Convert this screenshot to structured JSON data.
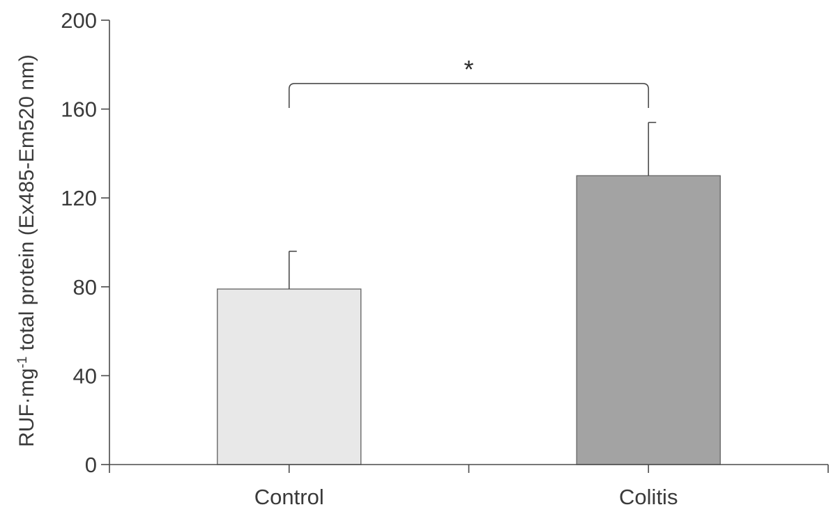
{
  "chart_data": {
    "type": "bar",
    "categories": [
      "Control",
      "Colitis"
    ],
    "values": [
      79,
      130
    ],
    "error_plus": [
      17,
      24
    ],
    "bar_colors": [
      "#e8e8e8",
      "#a3a3a3"
    ],
    "ylabel": {
      "prefix": "RUF·mg",
      "superscript": "-1",
      "suffix": " total protein (Ex485-Em520 nm)"
    },
    "ylim": [
      0,
      200
    ],
    "yticks": [
      0,
      40,
      80,
      120,
      160,
      200
    ],
    "grid": false,
    "significance": {
      "between": [
        0,
        1
      ],
      "label": "*"
    }
  }
}
